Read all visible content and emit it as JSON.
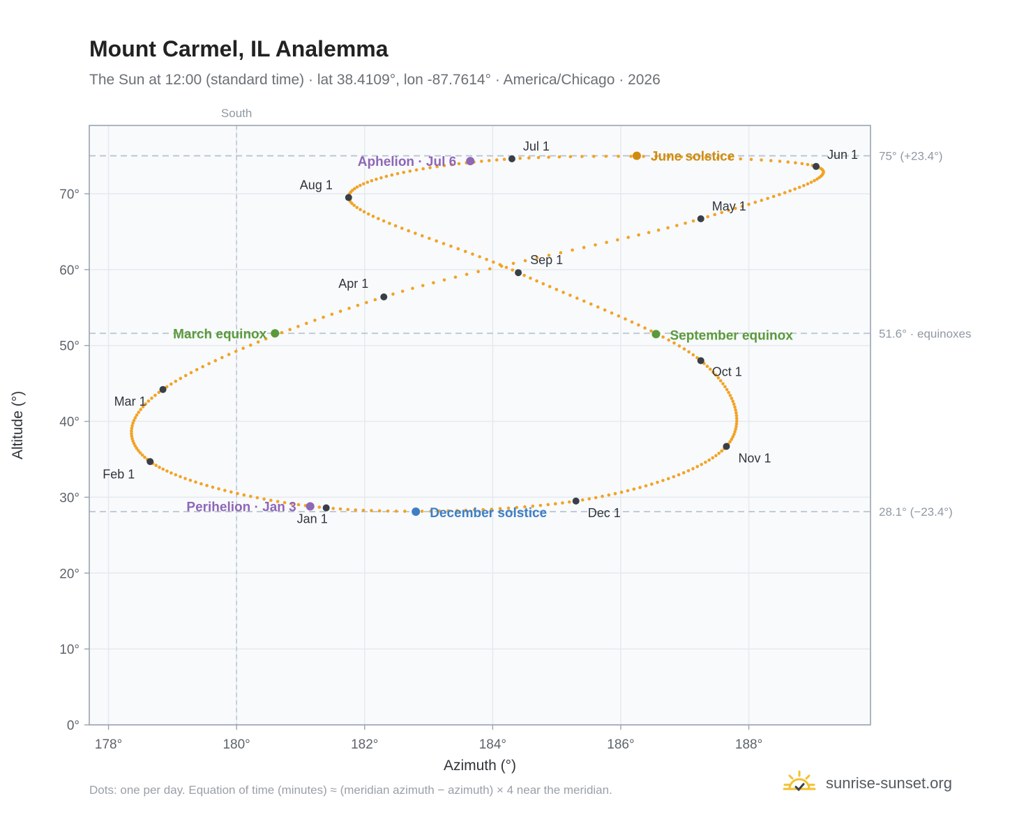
{
  "header": {
    "title": "Mount Carmel, IL Analemma",
    "subtitle": "The Sun at 12:00 (standard time) · lat 38.4109°, lon -87.7614° · America/Chicago · 2026"
  },
  "footer": {
    "note": "Dots: one per day. Equation of time (minutes) ≈ (meridian azimuth − azimuth) × 4 near the meridian.",
    "brand": "sunrise-sunset.org"
  },
  "colors": {
    "curve": "#f2a324",
    "month_dot": "#3a3f47",
    "equinox": "#5a9a3a",
    "june_solstice": "#d08c0e",
    "december_solstice": "#3d7fc4",
    "aphelion_perihelion": "#8e67b6",
    "plot_bg": "#f8fafc",
    "grid": "#e6e9ee",
    "ref_line": "#b9c4d0"
  },
  "chart_data": {
    "type": "scatter",
    "title": "Mount Carmel, IL Analemma",
    "xlabel": "Azimuth (°)",
    "ylabel": "Altitude (°)",
    "xlim": [
      177.7,
      189.9
    ],
    "ylim": [
      0,
      79
    ],
    "x_ticks": [
      178,
      180,
      182,
      184,
      186,
      188
    ],
    "x_tick_labels": [
      "178°",
      "180°",
      "182°",
      "184°",
      "186°",
      "188°"
    ],
    "y_ticks": [
      0,
      10,
      20,
      30,
      40,
      50,
      60,
      70
    ],
    "y_tick_labels": [
      "0°",
      "10°",
      "20°",
      "30°",
      "40°",
      "50°",
      "60°",
      "70°"
    ],
    "grid": true,
    "meridian": {
      "azimuth": 180,
      "label": "South"
    },
    "reference_lines": [
      {
        "altitude": 75.0,
        "label": "75° (+23.4°)"
      },
      {
        "altitude": 51.6,
        "label": "51.6° · equinoxes"
      },
      {
        "altitude": 28.1,
        "label": "28.1° (−23.4°)"
      }
    ],
    "month_markers": [
      {
        "label": "Jan 1",
        "azimuth": 181.4,
        "altitude": 28.6
      },
      {
        "label": "Feb 1",
        "azimuth": 178.65,
        "altitude": 34.7
      },
      {
        "label": "Mar 1",
        "azimuth": 178.85,
        "altitude": 44.2
      },
      {
        "label": "Apr 1",
        "azimuth": 182.3,
        "altitude": 56.4
      },
      {
        "label": "May 1",
        "azimuth": 187.25,
        "altitude": 66.7
      },
      {
        "label": "Jun 1",
        "azimuth": 189.05,
        "altitude": 73.6
      },
      {
        "label": "Jul 1",
        "azimuth": 184.3,
        "altitude": 74.6
      },
      {
        "label": "Aug 1",
        "azimuth": 181.75,
        "altitude": 69.5
      },
      {
        "label": "Sep 1",
        "azimuth": 184.4,
        "altitude": 59.6
      },
      {
        "label": "Oct 1",
        "azimuth": 187.25,
        "altitude": 48.0
      },
      {
        "label": "Nov 1",
        "azimuth": 187.65,
        "altitude": 36.7
      },
      {
        "label": "Dec 1",
        "azimuth": 185.3,
        "altitude": 29.5
      }
    ],
    "events": [
      {
        "label": "March equinox",
        "azimuth": 180.6,
        "altitude": 51.6,
        "color_key": "equinox"
      },
      {
        "label": "June solstice",
        "azimuth": 186.25,
        "altitude": 75.0,
        "color_key": "june_solstice"
      },
      {
        "label": "September equinox",
        "azimuth": 186.55,
        "altitude": 51.5,
        "color_key": "equinox"
      },
      {
        "label": "December solstice",
        "azimuth": 182.8,
        "altitude": 28.1,
        "color_key": "december_solstice"
      },
      {
        "label": "Perihelion · Jan 3",
        "azimuth": 181.15,
        "altitude": 28.8,
        "color_key": "aphelion_perihelion"
      },
      {
        "label": "Aphelion · Jul 6",
        "azimuth": 183.65,
        "altitude": 74.3,
        "color_key": "aphelion_perihelion"
      }
    ]
  }
}
